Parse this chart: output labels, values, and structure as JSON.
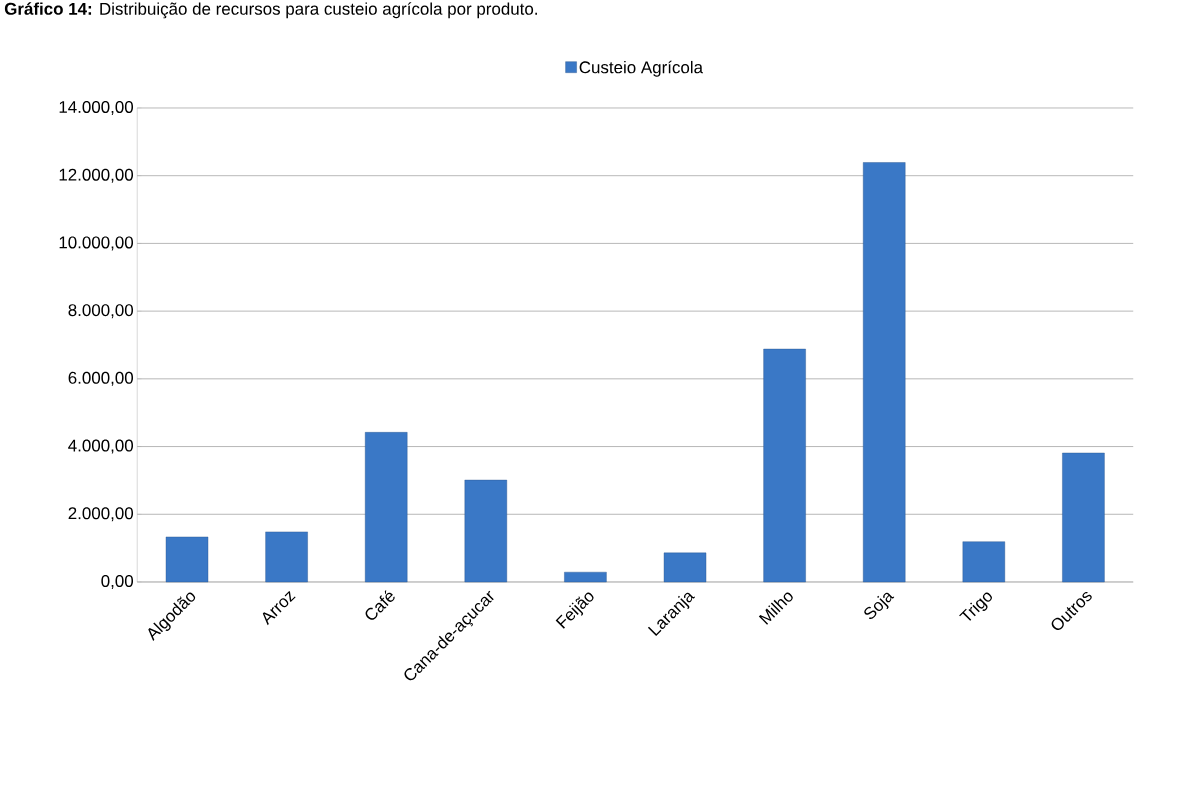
{
  "chart_data": {
    "type": "bar",
    "title": "**Gráfico 14:** Distribuição de recursos para custeio agrícola por produto.",
    "categories": [
      "Algodão",
      "Arroz",
      "Café",
      "Cana-de-açucar",
      "Feijão",
      "Laranja",
      "Milho",
      "Soja",
      "Trigo",
      "Outros"
    ],
    "series": [
      {
        "name": "Custeio Agrícola",
        "color": "#3a78c6",
        "values": [
          1330,
          1480,
          4420,
          3010,
          290,
          860,
          6880,
          12390,
          1190,
          3810
        ]
      }
    ],
    "ylim": [
      0,
      14000
    ],
    "yticks": [
      {
        "value": 0,
        "label": "0,00"
      },
      {
        "value": 2000,
        "label": "2.000,00"
      },
      {
        "value": 4000,
        "label": "4.000,00"
      },
      {
        "value": 6000,
        "label": "6.000,00"
      },
      {
        "value": 8000,
        "label": "8.000,00"
      },
      {
        "value": 10000,
        "label": "10.000,00"
      },
      {
        "value": 12000,
        "label": "12.000,00"
      },
      {
        "value": 14000,
        "label": "14.000,00"
      }
    ],
    "grid": "y",
    "legend": "top"
  }
}
